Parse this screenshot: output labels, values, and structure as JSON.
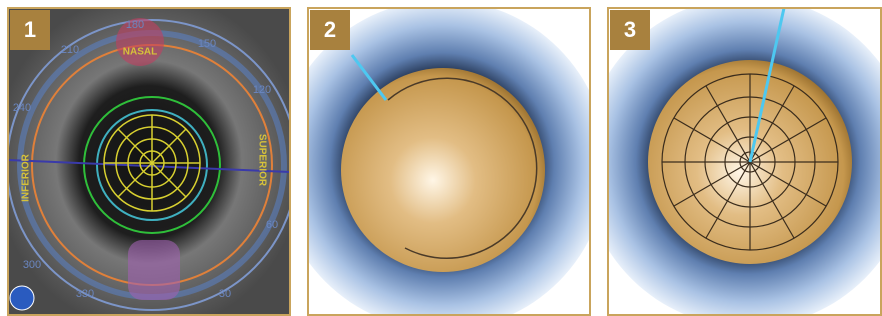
{
  "panels": [
    {
      "label": "1",
      "texts": [
        "180",
        "150",
        "210",
        "120",
        "240",
        "NASAL",
        "SUPERIOR",
        "INFERIOR",
        "300",
        "330",
        "30",
        "60"
      ]
    },
    {
      "label": "2"
    },
    {
      "label": "3"
    }
  ]
}
